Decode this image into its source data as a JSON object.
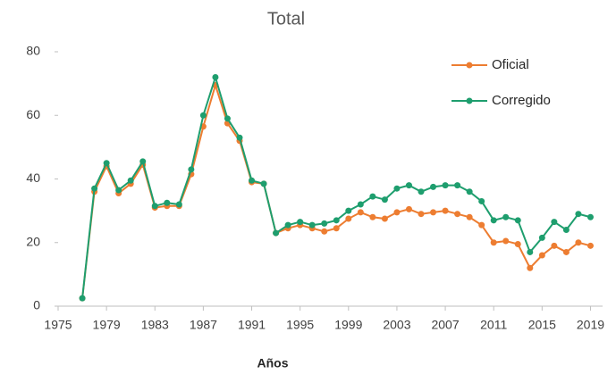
{
  "chart_data": {
    "type": "line",
    "title": "Total",
    "x_label": "Años",
    "x": [
      1977,
      1978,
      1979,
      1980,
      1981,
      1982,
      1983,
      1984,
      1985,
      1986,
      1987,
      1988,
      1989,
      1990,
      1991,
      1992,
      1993,
      1994,
      1995,
      1996,
      1997,
      1998,
      1999,
      2000,
      2001,
      2002,
      2003,
      2004,
      2005,
      2006,
      2007,
      2008,
      2009,
      2010,
      2011,
      2012,
      2013,
      2014,
      2015,
      2016,
      2017,
      2018,
      2019
    ],
    "series": [
      {
        "name": "Oficial",
        "color": "#ed7d31",
        "values": [
          2.5,
          36,
          44,
          35.5,
          38.5,
          44.5,
          31,
          31.5,
          31.5,
          41.5,
          56.5,
          69.5,
          57.5,
          52,
          39,
          38.5,
          23,
          24.5,
          25.5,
          24.5,
          23.5,
          24.5,
          27.5,
          29.5,
          28,
          27.5,
          29.5,
          30.5,
          29,
          29.5,
          30,
          29,
          28,
          25.5,
          20,
          20.5,
          19.5,
          12,
          16,
          19,
          17,
          20,
          19
        ]
      },
      {
        "name": "Corregido",
        "color": "#1e9e6e",
        "values": [
          2.5,
          37,
          45,
          36.5,
          39.5,
          45.5,
          31.5,
          32.5,
          32,
          43,
          60,
          72,
          59,
          53,
          39.5,
          38.5,
          23,
          25.5,
          26.5,
          25.5,
          26,
          27,
          30,
          32,
          34.5,
          33.5,
          37,
          38,
          36,
          37.5,
          38,
          38,
          36,
          33,
          27,
          28,
          27,
          17,
          21.5,
          26.5,
          24,
          29,
          28
        ]
      }
    ],
    "xlim": [
      1975,
      2020
    ],
    "xticks": [
      1975,
      1979,
      1983,
      1987,
      1991,
      1995,
      1999,
      2003,
      2007,
      2011,
      2015,
      2019
    ],
    "ylim": [
      0,
      80
    ],
    "yticks": [
      0,
      20,
      40,
      60,
      80
    ],
    "grid": false,
    "legend": "upper right"
  }
}
